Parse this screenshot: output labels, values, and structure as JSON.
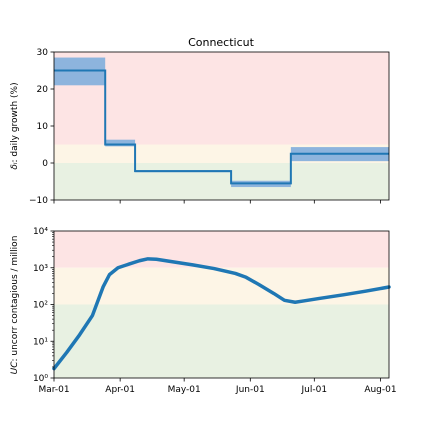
{
  "chart_data": [
    {
      "type": "line",
      "title": "Connecticut",
      "ylabel": "δᵢ: daily growth (%)",
      "ylabel_prefix": "δᵢ",
      "ylabel_rest": ": daily growth (%)",
      "xlim": [
        "2020-03-01",
        "2020-08-05"
      ],
      "ylim": [
        -10,
        30
      ],
      "yticks": [
        -10,
        0,
        10,
        20,
        30
      ],
      "ytick_labels": [
        "−10",
        "0",
        "10",
        "20",
        "30"
      ],
      "xticks": [
        "2020-03-01",
        "2020-04-01",
        "2020-05-01",
        "2020-06-01",
        "2020-07-01",
        "2020-08-01"
      ],
      "xtick_labels": [
        "",
        "",
        "",
        "",
        "",
        ""
      ],
      "zones": [
        {
          "from": 5,
          "to": 30,
          "color": "#fde4e4"
        },
        {
          "from": 0,
          "to": 5,
          "color": "#fdf5e6"
        },
        {
          "from": -10,
          "to": 0,
          "color": "#e8f1e2"
        }
      ],
      "series": [
        {
          "kind": "step",
          "color": "#1f77b4",
          "band_color": "#8db4dd",
          "segments": [
            {
              "start": "2020-03-01",
              "end": "2020-03-25",
              "value": 25,
              "low": 21,
              "high": 28.5
            },
            {
              "start": "2020-03-25",
              "end": "2020-04-08",
              "value": 5,
              "low": 4.5,
              "high": 6.3
            },
            {
              "start": "2020-04-08",
              "end": "2020-05-23",
              "value": -2.2,
              "low": -2.5,
              "high": -1.9
            },
            {
              "start": "2020-05-23",
              "end": "2020-06-20",
              "value": -5.5,
              "low": -6.5,
              "high": -4.8
            },
            {
              "start": "2020-06-20",
              "end": "2020-08-05",
              "value": 2.5,
              "low": 0.5,
              "high": 4.3
            }
          ]
        }
      ]
    },
    {
      "type": "line",
      "ylabel": "UC: uncorr contagious / million",
      "ylabel_prefix": "UC",
      "ylabel_rest": ": uncorr contagious / million",
      "xlim": [
        "2020-03-01",
        "2020-08-05"
      ],
      "yscale": "log",
      "ylim": [
        1,
        10000
      ],
      "yticks": [
        1,
        10,
        100,
        1000,
        10000
      ],
      "ytick_labels": [
        "10⁰",
        "10¹",
        "10²",
        "10³",
        "10⁴"
      ],
      "xticks": [
        "2020-03-01",
        "2020-04-01",
        "2020-05-01",
        "2020-06-01",
        "2020-07-01",
        "2020-08-01"
      ],
      "xtick_labels": [
        "Mar-01",
        "Apr-01",
        "May-01",
        "Jun-01",
        "Jul-01",
        "Aug-01"
      ],
      "zones": [
        {
          "from": 1000,
          "to": 10000,
          "color": "#fde4e4"
        },
        {
          "from": 100,
          "to": 1000,
          "color": "#fdf5e6"
        },
        {
          "from": 1,
          "to": 100,
          "color": "#e8f1e2"
        }
      ],
      "series": [
        {
          "kind": "line",
          "color": "#1f77b4",
          "points": [
            [
              "2020-03-01",
              1.8
            ],
            [
              "2020-03-07",
              5
            ],
            [
              "2020-03-13",
              15
            ],
            [
              "2020-03-19",
              50
            ],
            [
              "2020-03-24",
              300
            ],
            [
              "2020-03-27",
              650
            ],
            [
              "2020-03-31",
              1000
            ],
            [
              "2020-04-05",
              1250
            ],
            [
              "2020-04-10",
              1550
            ],
            [
              "2020-04-14",
              1750
            ],
            [
              "2020-04-18",
              1700
            ],
            [
              "2020-04-24",
              1500
            ],
            [
              "2020-05-05",
              1200
            ],
            [
              "2020-05-15",
              950
            ],
            [
              "2020-05-25",
              700
            ],
            [
              "2020-05-30",
              550
            ],
            [
              "2020-06-05",
              350
            ],
            [
              "2020-06-12",
              200
            ],
            [
              "2020-06-17",
              130
            ],
            [
              "2020-06-22",
              115
            ],
            [
              "2020-06-26",
              125
            ],
            [
              "2020-07-03",
              145
            ],
            [
              "2020-07-15",
              185
            ],
            [
              "2020-07-25",
              230
            ],
            [
              "2020-08-05",
              300
            ]
          ]
        }
      ]
    }
  ]
}
